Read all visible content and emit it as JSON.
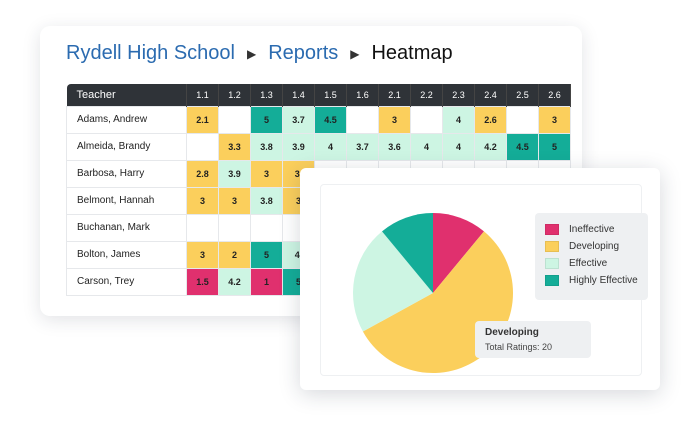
{
  "breadcrumb": {
    "school": "Rydell High School",
    "reports": "Reports",
    "current": "Heatmap",
    "separator": "▶"
  },
  "heatmap": {
    "teacher_header": "Teacher",
    "standards": [
      "1.1",
      "1.2",
      "1.3",
      "1.4",
      "1.5",
      "1.6",
      "2.1",
      "2.2",
      "2.3",
      "2.4",
      "2.5",
      "2.6"
    ],
    "rows": [
      {
        "teacher": "Adams, Andrew",
        "scores": [
          "2.1",
          "",
          "5",
          "3.7",
          "4.5",
          "",
          "3",
          "",
          "4",
          "2.6",
          "",
          "3"
        ]
      },
      {
        "teacher": "Almeida, Brandy",
        "scores": [
          "",
          "3.3",
          "3.8",
          "3.9",
          "4",
          "3.7",
          "3.6",
          "4",
          "4",
          "4.2",
          "4.5",
          "5"
        ]
      },
      {
        "teacher": "Barbosa, Harry",
        "scores": [
          "2.8",
          "3.9",
          "3",
          "3.",
          "",
          "",
          "",
          "",
          "",
          "",
          "",
          ""
        ]
      },
      {
        "teacher": "Belmont, Hannah",
        "scores": [
          "3",
          "3",
          "3.8",
          "3",
          "",
          "",
          "",
          "",
          "",
          "",
          "",
          ""
        ]
      },
      {
        "teacher": "Buchanan, Mark",
        "scores": [
          "",
          "",
          "",
          "",
          "",
          "",
          "",
          "",
          "",
          "",
          "",
          ""
        ]
      },
      {
        "teacher": "Bolton, James",
        "scores": [
          "3",
          "2",
          "5",
          "4.",
          "",
          "",
          "",
          "",
          "",
          "",
          "",
          ""
        ]
      },
      {
        "teacher": "Carson, Trey",
        "scores": [
          "1.5",
          "4.2",
          "1",
          "5",
          "",
          "",
          "",
          "",
          "",
          "",
          "",
          ""
        ]
      }
    ]
  },
  "rating_colors": {
    "ineffective": "#e0306e",
    "developing": "#fbcf5c",
    "effective": "#cdf5e3",
    "highly_effective": "#14ad98"
  },
  "chart_data": {
    "type": "pie",
    "legend_placement": "right",
    "series": [
      {
        "name": "Ineffective",
        "color": "#e0306e"
      },
      {
        "name": "Developing",
        "color": "#fbcf5c"
      },
      {
        "name": "Effective",
        "color": "#cdf5e3"
      },
      {
        "name": "Highly Effective",
        "color": "#14ad98"
      }
    ],
    "values": [
      11,
      56,
      22,
      11
    ]
  },
  "tooltip": {
    "title": "Developing",
    "label": "Total Ratings: 20"
  }
}
